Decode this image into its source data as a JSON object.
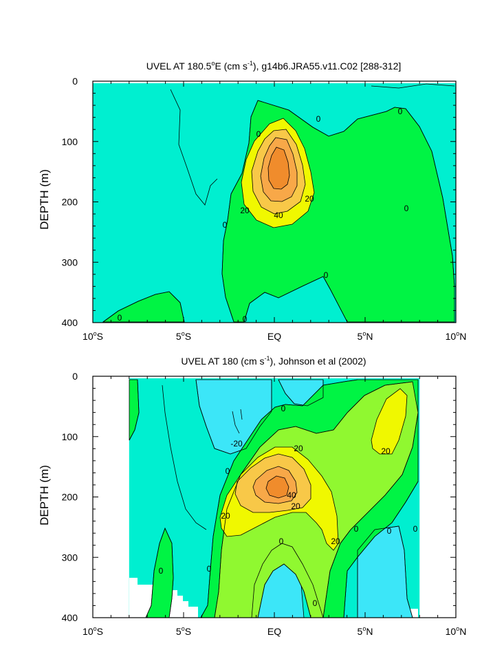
{
  "chart_data": [
    {
      "type": "contour",
      "title": "UVEL AT 180.5°E (cm s⁻¹), g14b6.JRA55.v11.C02 [288-312]",
      "title_parts": {
        "a": "UVEL AT 180.5",
        "deg": "o",
        "b": "E (cm s",
        "sup": "-1",
        "c": "), g14b6.JRA55.v11.C02 [288-312]"
      },
      "xlabel": "",
      "ylabel": "DEPTH (m)",
      "xlim": [
        -10,
        10
      ],
      "ylim": [
        400,
        0
      ],
      "xticks": [
        {
          "base": "10",
          "deg": "o",
          "hemi": "S"
        },
        {
          "base": "5",
          "deg": "o",
          "hemi": "S"
        },
        {
          "base": "EQ",
          "deg": "",
          "hemi": ""
        },
        {
          "base": "5",
          "deg": "o",
          "hemi": "N"
        },
        {
          "base": "10",
          "deg": "o",
          "hemi": "N"
        }
      ],
      "yticks": [
        "0",
        "100",
        "200",
        "300",
        "400"
      ],
      "contour_interval": 10,
      "fill_levels": [
        {
          "range": "< 0",
          "color": "#00EFD0"
        },
        {
          "range": "0-20",
          "color": "#00F444"
        },
        {
          "range": "20-30",
          "color": "#F0F800"
        },
        {
          "range": "30-40",
          "color": "#F8C848"
        },
        {
          "range": "40-50",
          "color": "#F8A848"
        },
        {
          "range": "> 50",
          "color": "#F08C2C"
        }
      ],
      "core": {
        "lat": 0,
        "depth_m": 150,
        "max_cm_s": 55
      },
      "contour_labels": [
        "0",
        "0",
        "0",
        "0",
        "0",
        "0",
        "0",
        "0",
        "20",
        "20",
        "40"
      ]
    },
    {
      "type": "contour",
      "title": "UVEL AT 180 (cm s⁻¹), Johnson et al (2002)",
      "title_parts": {
        "a": "UVEL AT 180 (cm s",
        "sup": "-1",
        "b": "), Johnson et al (2002)"
      },
      "xlabel": "",
      "ylabel": "DEPTH (m)",
      "xlim": [
        -10,
        10
      ],
      "ylim": [
        400,
        0
      ],
      "xticks": [
        {
          "base": "10",
          "deg": "o",
          "hemi": "S"
        },
        {
          "base": "5",
          "deg": "o",
          "hemi": "S"
        },
        {
          "base": "EQ",
          "deg": "",
          "hemi": ""
        },
        {
          "base": "5",
          "deg": "o",
          "hemi": "N"
        },
        {
          "base": "10",
          "deg": "o",
          "hemi": "N"
        }
      ],
      "yticks": [
        "0",
        "100",
        "200",
        "300",
        "400"
      ],
      "contour_interval": 10,
      "fill_levels": [
        {
          "range": "< -10",
          "color": "#3CE6F8"
        },
        {
          "range": "-10-0",
          "color": "#00EFD0"
        },
        {
          "range": "0-10",
          "color": "#00F444"
        },
        {
          "range": "10-20",
          "color": "#90F830"
        },
        {
          "range": "20-30",
          "color": "#F0F800"
        },
        {
          "range": "30-40",
          "color": "#F8C848"
        },
        {
          "range": "40-50",
          "color": "#F8A848"
        },
        {
          "range": "> 50",
          "color": "#F08C2C"
        }
      ],
      "data_extent_lat": [
        -8,
        8
      ],
      "core": {
        "lat": 0.5,
        "depth_m": 165,
        "max_cm_s": 55
      },
      "contour_labels": [
        "-20",
        "0",
        "0",
        "0",
        "0",
        "0",
        "0",
        "0",
        "0",
        "0",
        "20",
        "20",
        "20",
        "20",
        "20",
        "40"
      ]
    }
  ]
}
